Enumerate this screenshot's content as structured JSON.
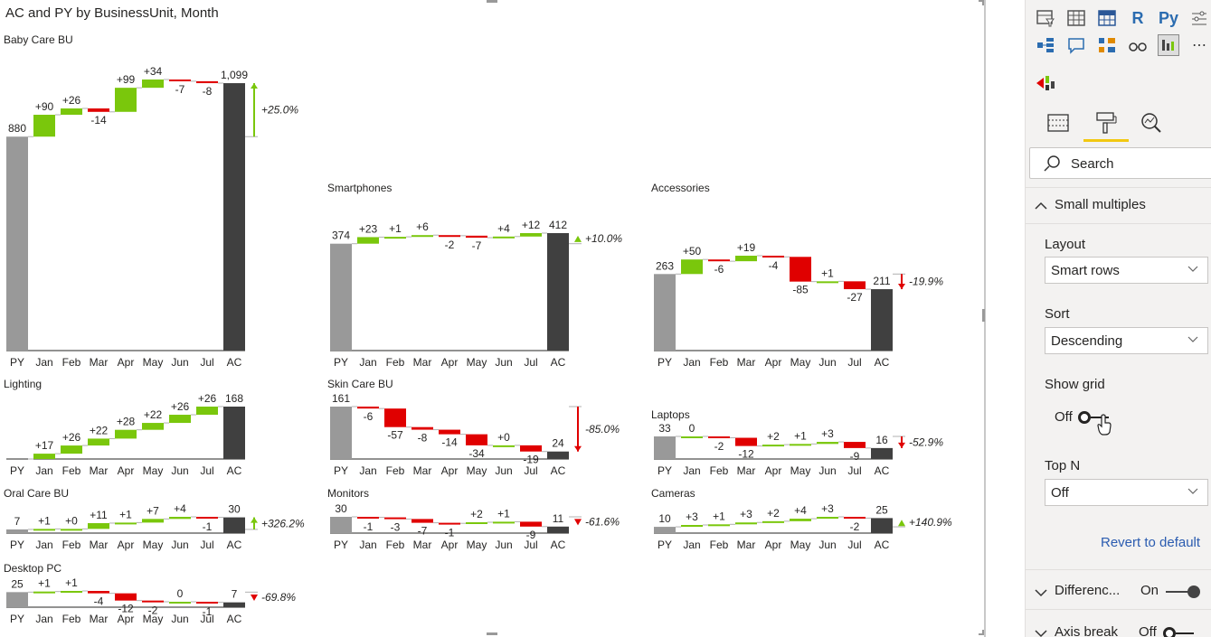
{
  "visual": {
    "title": "AC and PY by BusinessUnit, Month"
  },
  "colors": {
    "py": "#999999",
    "ac": "#404040",
    "positive": "#7ac70c",
    "negative": "#e00000",
    "connector": "#b0b0b0",
    "axis": "#252423",
    "accent": "#f2c811",
    "link": "#2b5cb0"
  },
  "chart_data": [
    {
      "type": "bar",
      "title": "Baby Care BU",
      "categories": [
        "PY",
        "Jan",
        "Feb",
        "Mar",
        "Apr",
        "May",
        "Jun",
        "Jul",
        "AC"
      ],
      "py": 880,
      "deltas": [
        "+90",
        "+26",
        "-14",
        "+99",
        "+34",
        "-7",
        "-8"
      ],
      "ac": "1,099",
      "py_label": "880",
      "variance": "+25.0%"
    },
    {
      "type": "bar",
      "title": "Smartphones",
      "categories": [
        "PY",
        "Jan",
        "Feb",
        "Mar",
        "Apr",
        "May",
        "Jun",
        "Jul",
        "AC"
      ],
      "py": 374,
      "deltas": [
        "+23",
        "+1",
        "+6",
        "-2",
        "-7",
        "+4",
        "+12"
      ],
      "ac": "412",
      "py_label": "374",
      "variance": "+10.0%"
    },
    {
      "type": "bar",
      "title": "Accessories",
      "categories": [
        "PY",
        "Jan",
        "Feb",
        "Mar",
        "Apr",
        "May",
        "Jun",
        "Jul",
        "AC"
      ],
      "py": 263,
      "deltas": [
        "+50",
        "-6",
        "+19",
        "-4",
        "-85",
        "+1",
        "-27"
      ],
      "ac": "211",
      "py_label": "263",
      "variance": "-19.9%"
    },
    {
      "type": "bar",
      "title": "Lighting",
      "categories": [
        "PY",
        "Jan",
        "Feb",
        "Mar",
        "Apr",
        "May",
        "Jun",
        "Jul",
        "AC"
      ],
      "py": 0,
      "deltas": [
        "+17",
        "+26",
        "+22",
        "+28",
        "+22",
        "+26",
        "+26"
      ],
      "ac": "168",
      "py_label": "",
      "variance": ""
    },
    {
      "type": "bar",
      "title": "Skin Care BU",
      "categories": [
        "PY",
        "Jan",
        "Feb",
        "Mar",
        "Apr",
        "May",
        "Jun",
        "Jul",
        "AC"
      ],
      "py": 161,
      "deltas": [
        "-6",
        "-57",
        "-8",
        "-14",
        "-34",
        "+0",
        "-19"
      ],
      "ac": "24",
      "py_label": "161",
      "variance": "-85.0%"
    },
    {
      "type": "bar",
      "title": "Laptops",
      "categories": [
        "PY",
        "Jan",
        "Feb",
        "Mar",
        "Apr",
        "May",
        "Jun",
        "Jul",
        "AC"
      ],
      "py": 33,
      "deltas": [
        "0",
        "-2",
        "-12",
        "+2",
        "+1",
        "+3",
        "-9"
      ],
      "ac": "16",
      "py_label": "33",
      "variance": "-52.9%"
    },
    {
      "type": "bar",
      "title": "Oral Care BU",
      "categories": [
        "PY",
        "Jan",
        "Feb",
        "Mar",
        "Apr",
        "May",
        "Jun",
        "Jul",
        "AC"
      ],
      "py": 7,
      "deltas": [
        "+1",
        "+0",
        "+11",
        "+1",
        "+7",
        "+4",
        "-1"
      ],
      "ac": "30",
      "py_label": "7",
      "variance": "+326.2%"
    },
    {
      "type": "bar",
      "title": "Monitors",
      "categories": [
        "PY",
        "Jan",
        "Feb",
        "Mar",
        "Apr",
        "May",
        "Jun",
        "Jul",
        "AC"
      ],
      "py": 30,
      "deltas": [
        "-1",
        "-3",
        "-7",
        "-1",
        "+2",
        "+1",
        "-9"
      ],
      "ac": "11",
      "py_label": "30",
      "variance": "-61.6%"
    },
    {
      "type": "bar",
      "title": "Cameras",
      "categories": [
        "PY",
        "Jan",
        "Feb",
        "Mar",
        "Apr",
        "May",
        "Jun",
        "Jul",
        "AC"
      ],
      "py": 10,
      "deltas": [
        "+3",
        "+1",
        "+3",
        "+2",
        "+4",
        "+3",
        "-2"
      ],
      "ac": "25",
      "py_label": "10",
      "variance": "+140.9%"
    },
    {
      "type": "bar",
      "title": "Desktop PC",
      "categories": [
        "PY",
        "Jan",
        "Feb",
        "Mar",
        "Apr",
        "May",
        "Jun",
        "Jul",
        "AC"
      ],
      "py": 25,
      "deltas": [
        "+1",
        "+1",
        "-4",
        "-12",
        "-2",
        "0",
        "-1"
      ],
      "ac": "7",
      "py_label": "25",
      "variance": "-69.8%"
    }
  ],
  "pane": {
    "viz_icons": [
      "table-filter-icon",
      "table-icon",
      "matrix-icon",
      "r-visual-icon",
      "python-visual-icon",
      "key-influencers-icon",
      "decomposition-tree-icon",
      "qa-icon",
      "smart-narrative-icon",
      "paginated-icon",
      "custom-visual-icon",
      "more-icon",
      "zebra-bi-icon"
    ],
    "viz_glyphs": {
      "r": "R",
      "py": "Py"
    },
    "tabs": [
      "fields-tab",
      "format-tab",
      "analytics-tab"
    ],
    "search_placeholder": "Search",
    "small_multiples": {
      "section_label": "Small multiples",
      "layout_label": "Layout",
      "layout_value": "Smart rows",
      "sort_label": "Sort",
      "sort_value": "Descending",
      "show_grid_label": "Show grid",
      "show_grid_value": "Off",
      "topn_label": "Top N",
      "topn_value": "Off",
      "revert": "Revert to default"
    },
    "differences": {
      "label": "Differenc...",
      "value": "On"
    },
    "axis_break": {
      "label": "Axis break",
      "value": "Off"
    }
  }
}
